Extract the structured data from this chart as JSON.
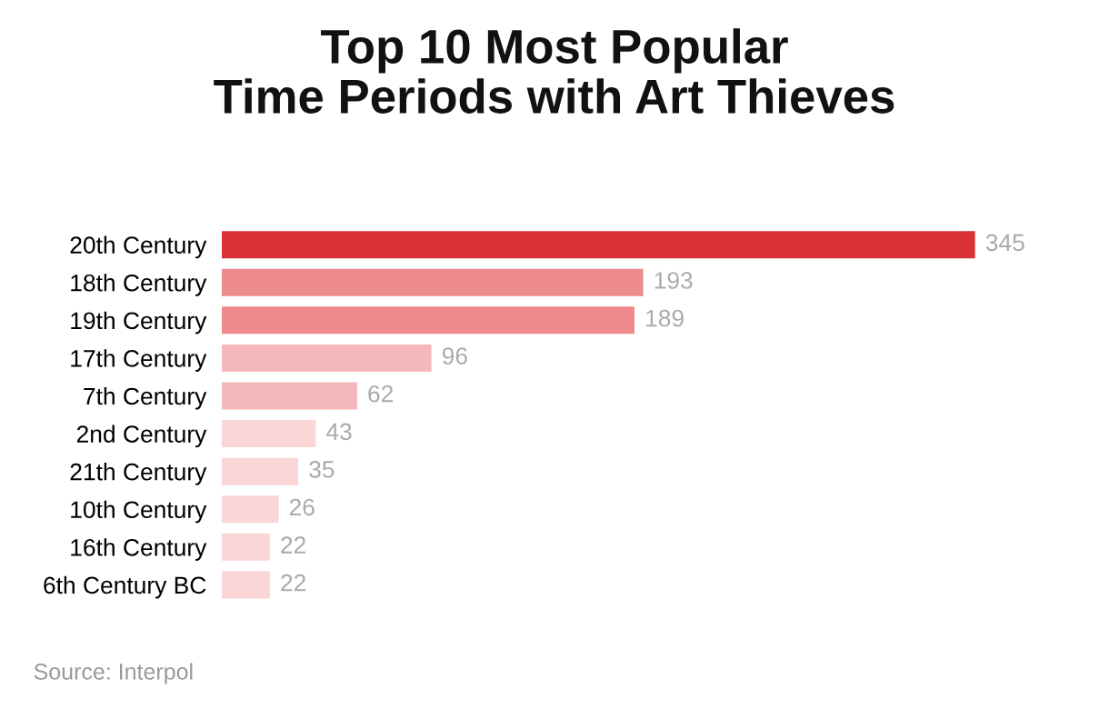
{
  "chart_data": {
    "type": "bar",
    "orientation": "horizontal",
    "title": "Top 10 Most Popular\nTime Periods with Art Thieves",
    "categories": [
      "20th Century",
      "18th Century",
      "19th Century",
      "17th Century",
      "7th Century",
      "2nd Century",
      "21th Century",
      "10th Century",
      "16th Century",
      "6th Century BC"
    ],
    "values": [
      345,
      193,
      189,
      96,
      62,
      43,
      35,
      26,
      22,
      22
    ],
    "colors": [
      "#d93236",
      "#ec8a8c",
      "#ec8a8c",
      "#f4b8ba",
      "#f4b8ba",
      "#fad6d7",
      "#fad6d7",
      "#fad6d7",
      "#fad6d7",
      "#fad6d7"
    ],
    "data_labels": true,
    "annotations": [
      "Source: Interpol"
    ]
  }
}
